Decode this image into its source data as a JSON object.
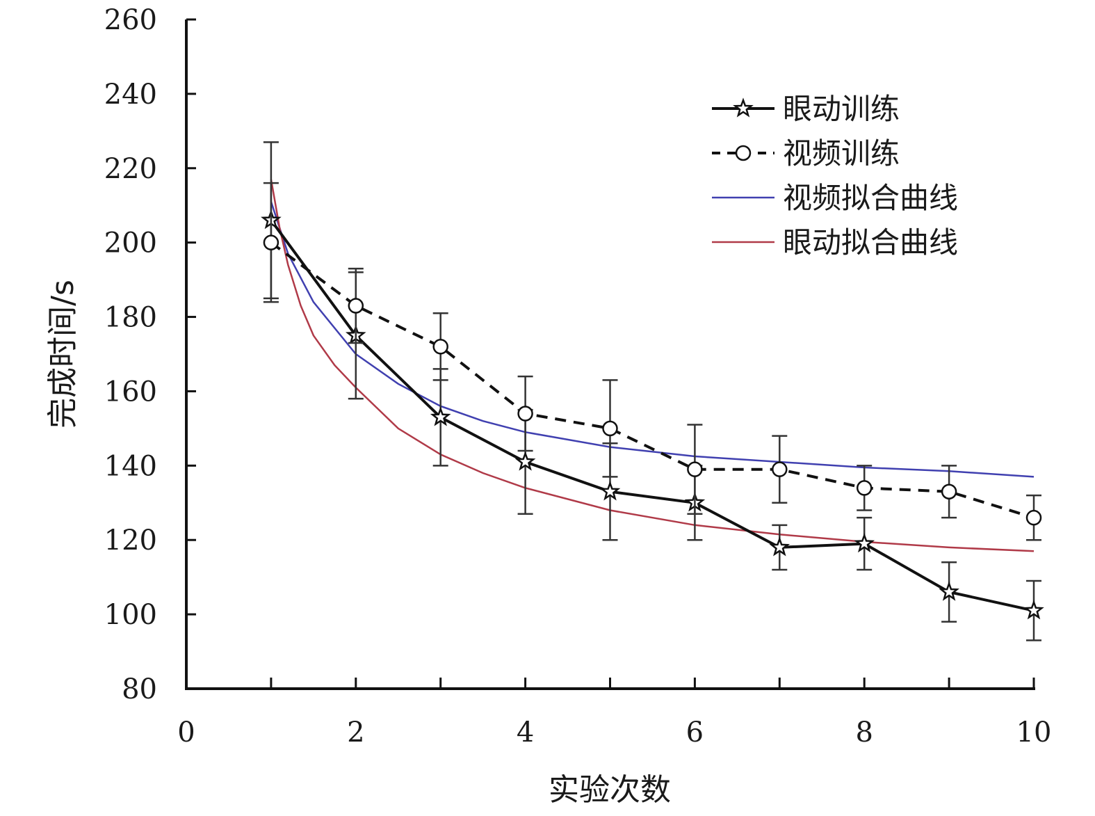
{
  "chart_data": {
    "type": "line",
    "xlabel": "实验次数",
    "ylabel": "完成时间/s",
    "xlim": [
      0,
      10
    ],
    "ylim": [
      80,
      260
    ],
    "xticks": [
      "0",
      "2",
      "4",
      "6",
      "8",
      "10"
    ],
    "yticks": [
      "80",
      "100",
      "120",
      "140",
      "160",
      "180",
      "200",
      "220",
      "240",
      "260"
    ],
    "x_minor_ticks": [
      1,
      3,
      5,
      7,
      9
    ],
    "grid": false,
    "legend_position": "top-right",
    "series": [
      {
        "name": "眼动训练",
        "style": "solid",
        "marker": "star",
        "color": "#111111",
        "x": [
          1,
          2,
          3,
          4,
          5,
          6,
          7,
          8,
          9,
          10
        ],
        "y": [
          206,
          175,
          153,
          141,
          133,
          130,
          118,
          119,
          106,
          101
        ],
        "error": [
          21,
          17,
          13,
          14,
          13,
          10,
          6,
          7,
          8,
          8
        ]
      },
      {
        "name": "视频训练",
        "style": "dashed",
        "marker": "circle",
        "color": "#111111",
        "x": [
          1,
          2,
          3,
          4,
          5,
          6,
          7,
          8,
          9,
          10
        ],
        "y": [
          200,
          183,
          172,
          154,
          150,
          139,
          139,
          134,
          133,
          126
        ],
        "error": [
          16,
          10,
          9,
          10,
          13,
          12,
          9,
          6,
          7,
          6
        ]
      },
      {
        "name": "视频拟合曲线",
        "style": "solid",
        "marker": "none",
        "color": "#4040b0",
        "x": [
          1.0,
          1.2,
          1.5,
          2.0,
          2.5,
          3.0,
          3.5,
          4.0,
          5.0,
          6.0,
          7.0,
          8.0,
          9.0,
          10.0
        ],
        "y": [
          211,
          197,
          184,
          170,
          162,
          156,
          152,
          149,
          145,
          142.5,
          141,
          139.5,
          138.5,
          137
        ]
      },
      {
        "name": "眼动拟合曲线",
        "style": "solid",
        "marker": "none",
        "color": "#b03a48",
        "x": [
          1.0,
          1.1,
          1.2,
          1.35,
          1.5,
          1.75,
          2.0,
          2.5,
          3.0,
          3.5,
          4.0,
          5.0,
          6.0,
          7.0,
          8.0,
          9.0,
          10.0
        ],
        "y": [
          217,
          204,
          194,
          183,
          175,
          167,
          161,
          150,
          143,
          138,
          134,
          128,
          124,
          121.5,
          119.5,
          118,
          117
        ]
      }
    ]
  }
}
